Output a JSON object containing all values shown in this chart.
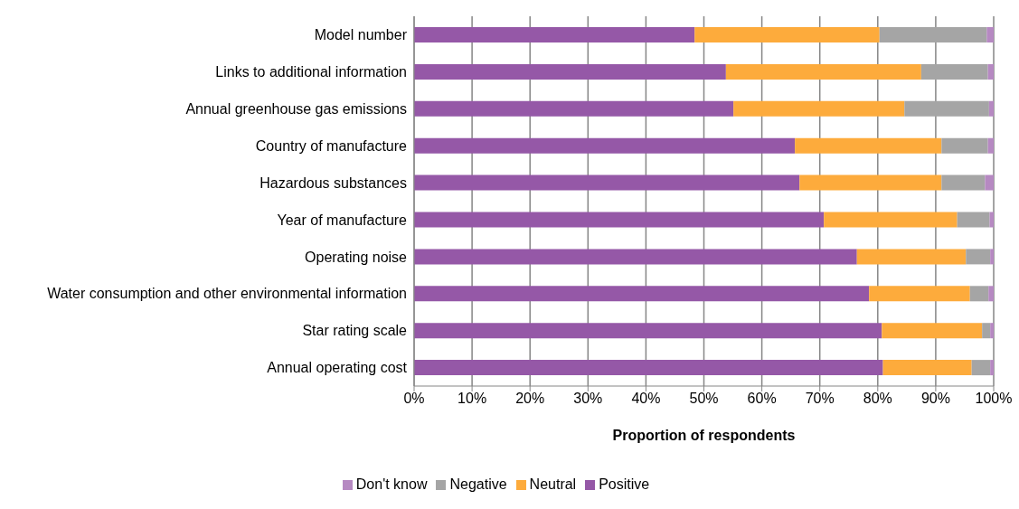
{
  "chart_data": {
    "type": "bar",
    "orientation": "horizontal",
    "stacked": true,
    "xlabel": "Proportion of respondents",
    "categories": [
      "Model number",
      "Links to additional information",
      "Annual greenhouse gas emissions",
      "Country of manufacture",
      "Hazardous substances",
      "Year of manufacture",
      "Operating noise",
      "Water consumption and other environmental information",
      "Star rating scale",
      "Annual operating cost"
    ],
    "series": [
      {
        "name": "Positive",
        "color": "#9558a7",
        "values": [
          48.4,
          53.8,
          55.1,
          65.7,
          66.5,
          70.7,
          76.4,
          78.5,
          80.7,
          80.9
        ]
      },
      {
        "name": "Neutral",
        "color": "#fdab3c",
        "values": [
          31.9,
          33.7,
          29.5,
          25.3,
          24.5,
          23.0,
          18.8,
          17.4,
          17.3,
          15.3
        ]
      },
      {
        "name": "Negative",
        "color": "#a5a5a5",
        "values": [
          18.5,
          11.5,
          14.6,
          8.0,
          7.5,
          5.6,
          4.2,
          3.2,
          1.4,
          3.2
        ]
      },
      {
        "name": "Don't know",
        "color": "#b689c2",
        "values": [
          1.2,
          1.0,
          0.8,
          1.0,
          1.5,
          0.7,
          0.6,
          0.9,
          0.6,
          0.6
        ]
      }
    ],
    "xlim": [
      0,
      100
    ],
    "xticks": [
      {
        "value": 0,
        "label": "0%"
      },
      {
        "value": 10,
        "label": "10%"
      },
      {
        "value": 20,
        "label": "20%"
      },
      {
        "value": 30,
        "label": "30%"
      },
      {
        "value": 40,
        "label": "40%"
      },
      {
        "value": 50,
        "label": "50%"
      },
      {
        "value": 60,
        "label": "60%"
      },
      {
        "value": 70,
        "label": "70%"
      },
      {
        "value": 80,
        "label": "80%"
      },
      {
        "value": 90,
        "label": "90%"
      },
      {
        "value": 100,
        "label": "100%"
      }
    ],
    "grid": "x",
    "legend": "bottom"
  }
}
